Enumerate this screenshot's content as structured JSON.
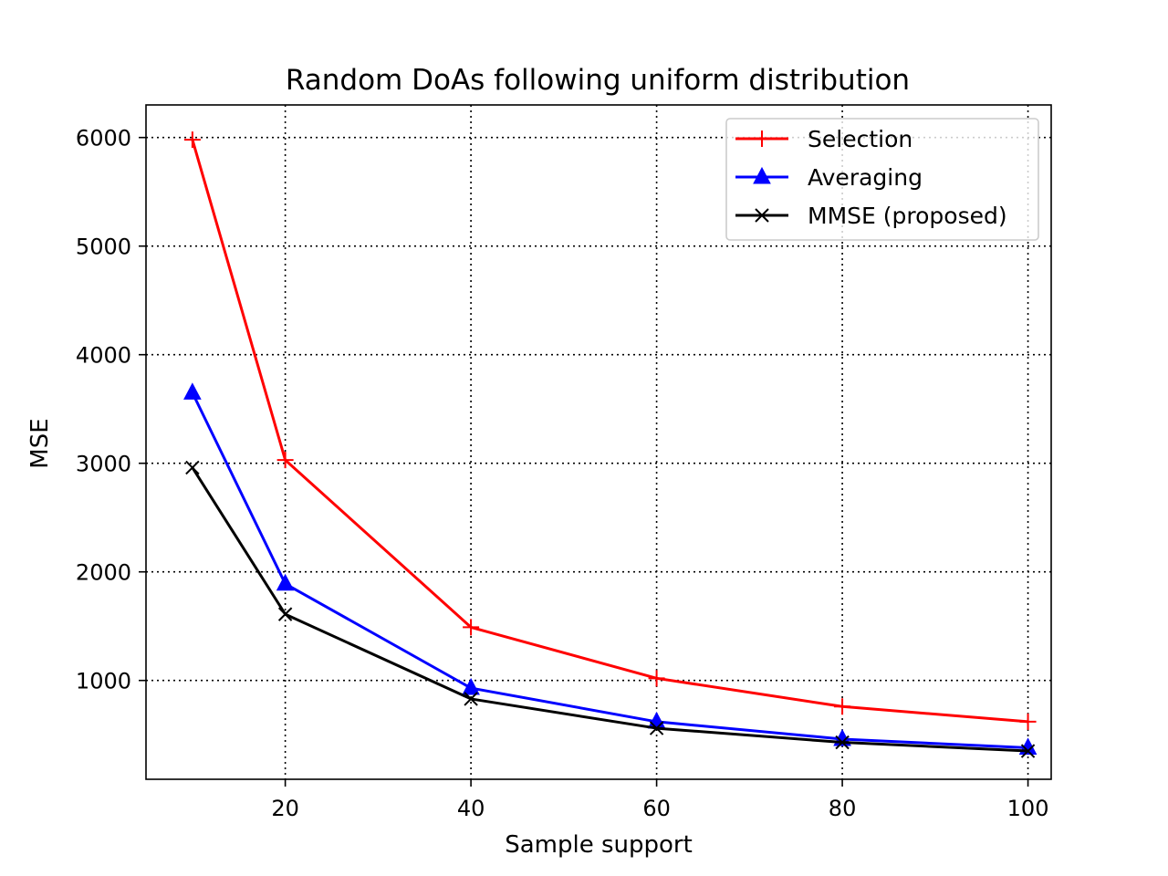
{
  "chart_data": {
    "type": "line",
    "title": "Random DoAs following uniform distribution",
    "xlabel": "Sample support",
    "ylabel": "MSE",
    "x": [
      10,
      20,
      40,
      60,
      80,
      100
    ],
    "xlim": [
      5,
      102.5
    ],
    "ylim": [
      90,
      6300
    ],
    "xticks": [
      20,
      40,
      60,
      80,
      100
    ],
    "yticks": [
      1000,
      2000,
      3000,
      4000,
      5000,
      6000
    ],
    "grid": true,
    "legend_position": "top-right",
    "series": [
      {
        "name": "Selection",
        "color": "#ff0000",
        "marker": "plus",
        "values": [
          5980,
          3030,
          1490,
          1020,
          760,
          620
        ]
      },
      {
        "name": "Averaging",
        "color": "#0000ff",
        "marker": "triangle",
        "values": [
          3650,
          1890,
          930,
          620,
          460,
          380
        ]
      },
      {
        "name": "MMSE (proposed)",
        "color": "#000000",
        "marker": "x",
        "values": [
          2960,
          1610,
          830,
          560,
          430,
          350
        ]
      }
    ]
  }
}
